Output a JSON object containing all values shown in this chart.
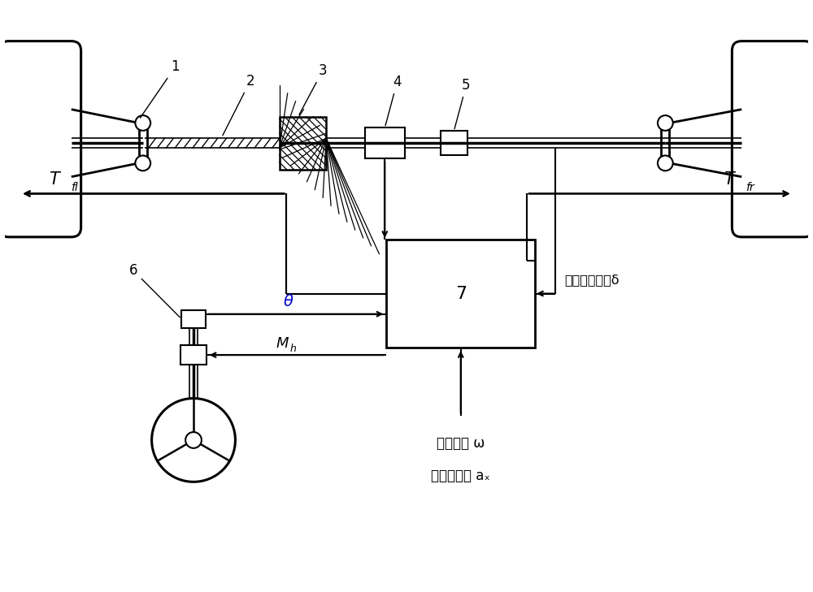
{
  "bg_color": "#ffffff",
  "line_color": "#000000",
  "fig_width": 10.0,
  "fig_height": 7.29,
  "labels": {
    "label1": "1",
    "label2": "2",
    "label3": "3",
    "label4": "4",
    "label5": "5",
    "label6": "6",
    "label7": "7",
    "theta": "θ",
    "M_h": "M",
    "M_h_sub": "h",
    "text_wheel_speed": "四轮轮速 ω",
    "text_accel": "纵向加速度 aₓ",
    "text_actual": "实际车轮转角δ"
  }
}
